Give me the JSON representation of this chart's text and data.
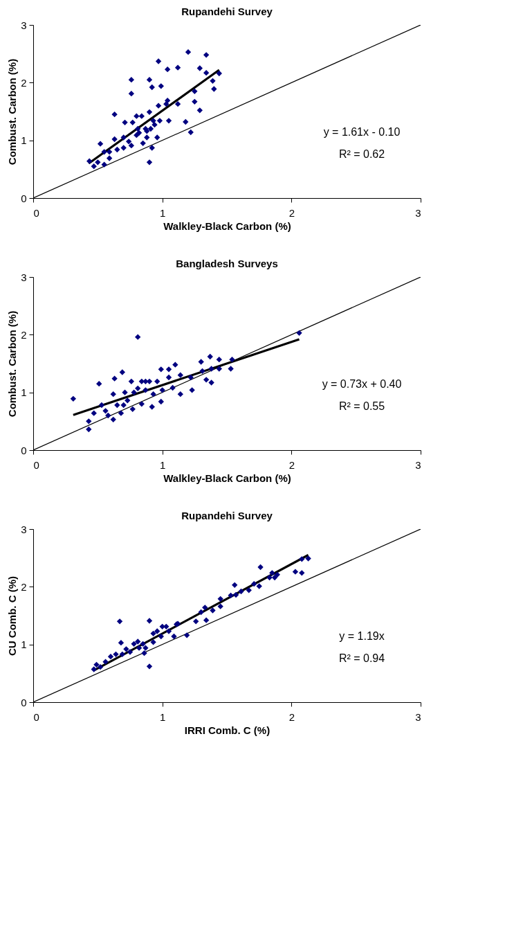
{
  "chart_data": [
    {
      "type": "scatter",
      "title": "Rupandehi Survey",
      "xlabel": "Walkley-Black Carbon (%)",
      "ylabel": "Combust. Carbon (%)",
      "xlim": [
        0,
        3
      ],
      "ylim": [
        0,
        3
      ],
      "xticks": [
        0,
        1,
        2,
        3
      ],
      "yticks": [
        0,
        1,
        2,
        3
      ],
      "marker": "diamond",
      "annotations": [
        "y = 1.61x - 0.10",
        "R² = 0.62"
      ],
      "series": [
        {
          "color": "#000080",
          "x": [
            0.435,
            0.47,
            0.5,
            0.52,
            0.55,
            0.55,
            0.59,
            0.59,
            0.63,
            0.63,
            0.65,
            0.7,
            0.7,
            0.71,
            0.74,
            0.76,
            0.76,
            0.76,
            0.77,
            0.8,
            0.8,
            0.82,
            0.84,
            0.85,
            0.87,
            0.88,
            0.9,
            0.9,
            0.9,
            0.92,
            0.92,
            0.91,
            0.94,
            0.96,
            0.97,
            0.97,
            0.98,
            0.99,
            1.03,
            1.04,
            1.04,
            1.05,
            1.12,
            1.12,
            1.18,
            1.2,
            1.22,
            1.25,
            1.25,
            1.29,
            1.29,
            1.34,
            1.34,
            1.39,
            1.4,
            1.44,
            0.88,
            0.93,
            0.81
          ],
          "values": [
            0.64,
            0.55,
            0.62,
            0.94,
            0.58,
            0.8,
            0.69,
            0.8,
            1.02,
            1.45,
            0.84,
            0.87,
            1.05,
            1.31,
            0.98,
            0.91,
            2.05,
            1.81,
            1.31,
            1.42,
            1.09,
            1.13,
            1.42,
            0.95,
            1.2,
            1.05,
            2.05,
            1.49,
            0.62,
            1.92,
            0.87,
            1.2,
            1.27,
            1.05,
            2.37,
            1.6,
            1.34,
            1.94,
            1.63,
            1.69,
            2.23,
            1.34,
            2.26,
            1.63,
            1.32,
            2.53,
            1.14,
            1.85,
            1.67,
            2.25,
            1.52,
            2.17,
            2.48,
            2.03,
            1.89,
            2.16,
            1.16,
            1.34,
            1.2
          ]
        },
        {
          "type": "line",
          "marker": "none",
          "color": "#000000",
          "x": [
            0.43,
            1.44
          ],
          "values": [
            0.6,
            2.22
          ]
        },
        {
          "type": "line",
          "marker": "none",
          "color": "#000000",
          "x": [
            0,
            3
          ],
          "values": [
            0,
            3
          ]
        }
      ]
    },
    {
      "type": "scatter",
      "title": "Bangladesh Surveys",
      "xlabel": "Walkley-Black Carbon (%)",
      "ylabel": "Combust. Carbon (%)",
      "xlim": [
        0,
        3
      ],
      "ylim": [
        0,
        3
      ],
      "xticks": [
        0,
        1,
        2,
        3
      ],
      "yticks": [
        0,
        1,
        2,
        3
      ],
      "marker": "diamond",
      "annotations": [
        "y = 0.73x + 0.40",
        "R² = 0.55"
      ],
      "series": [
        {
          "color": "#000080",
          "x": [
            0.31,
            0.43,
            0.43,
            0.51,
            0.47,
            0.53,
            0.56,
            0.58,
            0.62,
            0.63,
            0.62,
            0.65,
            0.68,
            0.69,
            0.7,
            0.71,
            0.76,
            0.77,
            0.78,
            0.81,
            0.81,
            0.84,
            0.84,
            0.87,
            0.9,
            0.92,
            0.93,
            0.96,
            0.99,
            0.99,
            1.0,
            1.05,
            1.05,
            1.08,
            1.1,
            1.14,
            1.14,
            1.22,
            1.23,
            1.3,
            1.31,
            1.34,
            1.37,
            1.38,
            1.38,
            1.44,
            1.44,
            1.53,
            1.54,
            2.06,
            0.87,
            0.73
          ],
          "values": [
            0.89,
            0.5,
            0.36,
            1.15,
            0.64,
            0.78,
            0.68,
            0.6,
            0.53,
            1.24,
            0.97,
            0.78,
            0.64,
            1.35,
            0.78,
            1.0,
            1.19,
            0.71,
            1.0,
            1.96,
            1.07,
            1.19,
            0.8,
            1.04,
            1.19,
            0.75,
            0.97,
            1.19,
            1.4,
            0.84,
            1.04,
            1.4,
            1.26,
            1.08,
            1.48,
            0.97,
            1.3,
            1.26,
            1.04,
            1.53,
            1.37,
            1.22,
            1.62,
            1.41,
            1.17,
            1.41,
            1.57,
            1.41,
            1.57,
            2.03,
            1.19,
            0.86
          ]
        },
        {
          "type": "line",
          "marker": "none",
          "color": "#000000",
          "x": [
            0.31,
            2.06
          ],
          "values": [
            0.61,
            1.92
          ]
        },
        {
          "type": "line",
          "marker": "none",
          "color": "#000000",
          "x": [
            0,
            3
          ],
          "values": [
            0,
            3
          ]
        }
      ]
    },
    {
      "type": "scatter",
      "title": "Rupandehi Survey",
      "xlabel": "IRRI Comb. C (%)",
      "ylabel": "CU Comb. C (%)",
      "xlim": [
        0,
        3
      ],
      "ylim": [
        0,
        3
      ],
      "xticks": [
        0,
        1,
        2,
        3
      ],
      "yticks": [
        0,
        1,
        2,
        3
      ],
      "marker": "diamond",
      "annotations": [
        "y = 1.19x",
        "R² = 0.94"
      ],
      "series": [
        {
          "color": "#000080",
          "x": [
            0.47,
            0.49,
            0.52,
            0.56,
            0.6,
            0.64,
            0.67,
            0.68,
            0.69,
            0.72,
            0.75,
            0.78,
            0.81,
            0.82,
            0.85,
            0.86,
            0.87,
            0.9,
            0.9,
            0.93,
            0.93,
            0.96,
            0.99,
            1.0,
            1.03,
            1.05,
            1.09,
            1.11,
            1.12,
            1.19,
            1.26,
            1.3,
            1.33,
            1.34,
            1.39,
            1.45,
            1.45,
            1.53,
            1.56,
            1.57,
            1.61,
            1.67,
            1.71,
            1.75,
            1.76,
            1.83,
            1.85,
            1.87,
            1.89,
            2.03,
            2.08,
            2.08,
            2.13
          ],
          "values": [
            0.57,
            0.65,
            0.61,
            0.7,
            0.79,
            0.83,
            1.4,
            1.03,
            0.83,
            0.92,
            0.87,
            1.01,
            1.05,
            0.94,
            1.01,
            0.85,
            0.94,
            1.41,
            0.62,
            1.19,
            1.04,
            1.23,
            1.14,
            1.31,
            1.31,
            1.23,
            1.14,
            1.35,
            1.36,
            1.16,
            1.4,
            1.56,
            1.64,
            1.42,
            1.59,
            1.79,
            1.66,
            1.85,
            2.03,
            1.86,
            1.92,
            1.94,
            2.05,
            2.01,
            2.34,
            2.16,
            2.24,
            2.16,
            2.21,
            2.26,
            2.24,
            2.48,
            2.49
          ]
        },
        {
          "type": "line",
          "marker": "none",
          "color": "#000000",
          "x": [
            0.47,
            2.13
          ],
          "values": [
            0.55,
            2.55
          ]
        },
        {
          "type": "line",
          "marker": "none",
          "color": "#000000",
          "x": [
            0,
            3
          ],
          "values": [
            0,
            3
          ]
        }
      ]
    }
  ]
}
